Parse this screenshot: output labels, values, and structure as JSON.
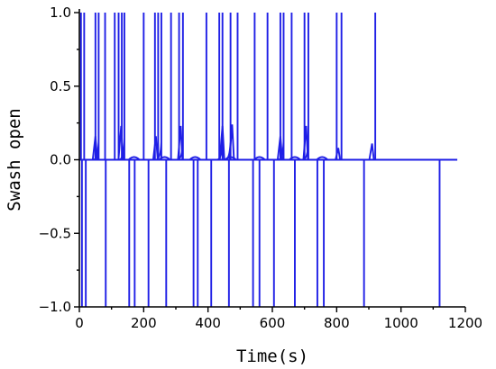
{
  "chart_data": {
    "type": "line",
    "title": "",
    "xlabel": "Time(s)",
    "ylabel": "Swash open",
    "xlim": [
      0,
      1200
    ],
    "ylim": [
      -1.0,
      1.0
    ],
    "xticks": [
      0,
      200,
      400,
      600,
      800,
      1000,
      1200
    ],
    "xtick_labels": [
      "0",
      "200",
      "400",
      "600",
      "800",
      "1000",
      "1200"
    ],
    "yticks": [
      1.0,
      0.5,
      0.0,
      -0.5,
      -1.0
    ],
    "ytick_labels": [
      "1.0",
      "0.5",
      "0.0",
      "−0.5",
      "−1.0"
    ],
    "grid": false,
    "legend": "none",
    "series": [
      {
        "color": "#1f1fe6",
        "x_range": [
          0,
          1175
        ],
        "up_spikes": [
          {
            "x": 5,
            "ramp": false
          },
          {
            "x": 15,
            "ramp": false
          },
          {
            "x": 50,
            "ramp": false
          },
          {
            "x": 60,
            "ramp": true
          },
          {
            "x": 80,
            "ramp": false
          },
          {
            "x": 110,
            "ramp": false
          },
          {
            "x": 122,
            "ramp": false
          },
          {
            "x": 132,
            "ramp": false
          },
          {
            "x": 140,
            "ramp": true
          },
          {
            "x": 200,
            "ramp": false
          },
          {
            "x": 235,
            "ramp": false
          },
          {
            "x": 245,
            "ramp": false
          },
          {
            "x": 255,
            "ramp": true
          },
          {
            "x": 285,
            "ramp": false
          },
          {
            "x": 310,
            "ramp": false
          },
          {
            "x": 322,
            "ramp": true
          },
          {
            "x": 395,
            "ramp": false
          },
          {
            "x": 435,
            "ramp": false
          },
          {
            "x": 445,
            "ramp": true
          },
          {
            "x": 470,
            "ramp": true
          },
          {
            "x": 492,
            "ramp": false
          },
          {
            "x": 545,
            "ramp": false
          },
          {
            "x": 585,
            "ramp": false
          },
          {
            "x": 625,
            "ramp": false
          },
          {
            "x": 635,
            "ramp": true
          },
          {
            "x": 660,
            "ramp": false
          },
          {
            "x": 700,
            "ramp": false
          },
          {
            "x": 712,
            "ramp": true
          },
          {
            "x": 800,
            "ramp": false
          },
          {
            "x": 815,
            "ramp": false
          },
          {
            "x": 920,
            "ramp": false
          }
        ],
        "small_pulses": [
          {
            "x": 50,
            "height": 0.16
          },
          {
            "x": 130,
            "height": 0.23
          },
          {
            "x": 238,
            "height": 0.16
          },
          {
            "x": 315,
            "height": 0.23
          },
          {
            "x": 445,
            "height": 0.23
          },
          {
            "x": 475,
            "height": 0.24
          },
          {
            "x": 625,
            "height": 0.16
          },
          {
            "x": 705,
            "height": 0.23
          },
          {
            "x": 805,
            "height": 0.08
          },
          {
            "x": 910,
            "height": 0.11
          }
        ],
        "down_spikes": [
          8,
          20,
          82,
          155,
          172,
          215,
          270,
          355,
          368,
          410,
          465,
          540,
          560,
          605,
          670,
          740,
          760,
          885,
          1120
        ],
        "bumps": [
          170,
          265,
          360,
          470,
          560,
          670,
          755
        ]
      }
    ]
  }
}
